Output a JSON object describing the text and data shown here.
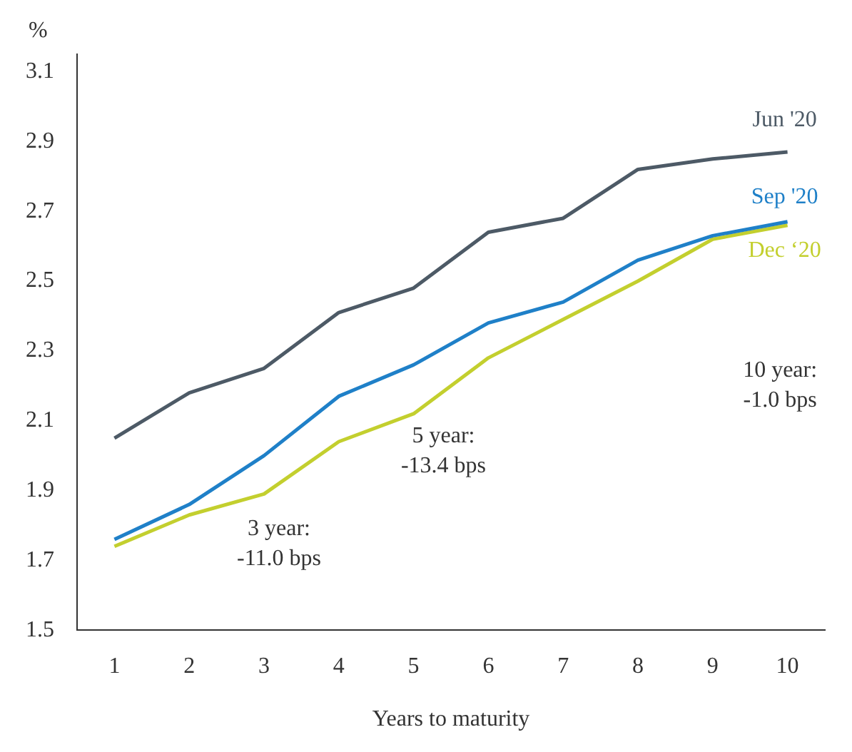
{
  "chart_data": {
    "type": "line",
    "xlabel": "Years to maturity",
    "ylabel": "%",
    "x": [
      1,
      2,
      3,
      4,
      5,
      6,
      7,
      8,
      9,
      10
    ],
    "series": [
      {
        "name": "Jun '20",
        "color": "#4d5a66",
        "values": [
          2.05,
          2.18,
          2.25,
          2.41,
          2.48,
          2.64,
          2.68,
          2.82,
          2.85,
          2.87
        ]
      },
      {
        "name": "Sep '20",
        "color": "#1f80c8",
        "values": [
          1.76,
          1.86,
          2.0,
          2.17,
          2.26,
          2.38,
          2.44,
          2.56,
          2.63,
          2.67
        ]
      },
      {
        "name": "Dec ‘20",
        "color": "#c3cf2e",
        "values": [
          1.74,
          1.83,
          1.89,
          2.04,
          2.12,
          2.28,
          2.39,
          2.5,
          2.62,
          2.66
        ]
      }
    ],
    "xlim": [
      0.5,
      10.5
    ],
    "xticks": [
      1,
      2,
      3,
      4,
      5,
      6,
      7,
      8,
      9,
      10
    ],
    "ylim": [
      1.5,
      3.15
    ],
    "yticks": [
      1.5,
      1.7,
      1.9,
      2.1,
      2.3,
      2.5,
      2.7,
      2.9,
      3.1
    ],
    "annotations": [
      "3 year:\n-11.0 bps",
      "5 year:\n-13.4 bps",
      "10 year:\n-1.0 bps"
    ],
    "grid": false,
    "legend": false,
    "marker": "none",
    "line_style": "solid"
  }
}
